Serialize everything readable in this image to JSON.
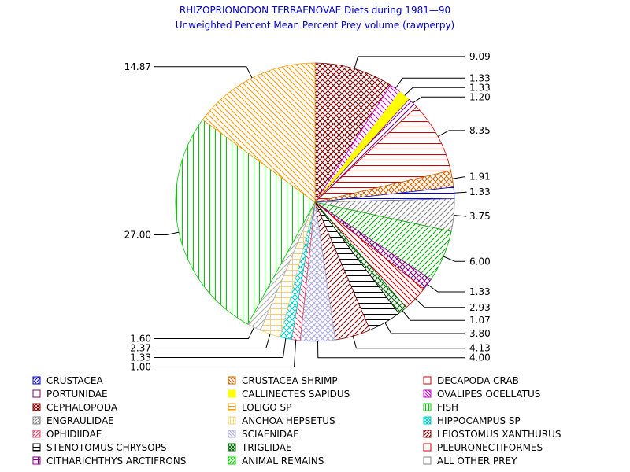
{
  "chart_data": {
    "type": "pie",
    "title": "RHIZOPRIONODON TERRAENOVAE Diets during 1981—90",
    "subtitle": "Unweighted Percent Mean Percent Prey  volume (rawperpy)",
    "slices": [
      {
        "name": "CEPHALOPODA",
        "value": 9.09,
        "label": "9.09",
        "color": "#800000",
        "pattern": "crosshatch"
      },
      {
        "name": "OVALIPES OCELLATUS",
        "value": 1.33,
        "label": "1.33",
        "color": "#cc00cc",
        "pattern": "diag-down"
      },
      {
        "name": "CALLINECTES SAPIDUS",
        "value": 1.33,
        "label": "1.33",
        "color": "#ffff00",
        "pattern": "solid"
      },
      {
        "name": "PORTUNIDAE",
        "value": 1.2,
        "label": "1.20",
        "color": "#800080",
        "pattern": "diag-up"
      },
      {
        "name": "DECAPODA CRAB",
        "value": 8.35,
        "label": "8.35",
        "color": "#cc0000",
        "pattern": "horizontal"
      },
      {
        "name": "CRUSTACEA SHRIMP",
        "value": 1.91,
        "label": "1.91",
        "color": "#cc6600",
        "pattern": "crosshatch"
      },
      {
        "name": "CRUSTACEA",
        "value": 1.33,
        "label": "1.33",
        "color": "#0000cc",
        "pattern": "horizontal"
      },
      {
        "name": "ALL OTHER PREY",
        "value": 3.75,
        "label": "3.75",
        "color": "#808080",
        "pattern": "diag-up"
      },
      {
        "name": "ANIMAL REMAINS",
        "value": 6.0,
        "label": "6.00",
        "color": "#00aa00",
        "pattern": "diag-up"
      },
      {
        "name": "CITHARICHTHYS ARCTIFRONS",
        "value": 1.33,
        "label": "1.33",
        "color": "#800080",
        "pattern": "crosshatch"
      },
      {
        "name": "PLEURONECTIFORMES",
        "value": 2.93,
        "label": "2.93",
        "color": "#cc0000",
        "pattern": "diag-down"
      },
      {
        "name": "TRIGLIDAE",
        "value": 1.07,
        "label": "1.07",
        "color": "#006600",
        "pattern": "crosshatch"
      },
      {
        "name": "STENOTOMUS CHRYSOPS",
        "value": 3.8,
        "label": "3.80",
        "color": "#000000",
        "pattern": "horizontal"
      },
      {
        "name": "LEIOSTOMUS XANTHURUS",
        "value": 4.13,
        "label": "4.13",
        "color": "#800000",
        "pattern": "diag-up"
      },
      {
        "name": "SCIAENIDAE",
        "value": 4.0,
        "label": "4.00",
        "color": "#aaaadd",
        "pattern": "crosshatch"
      },
      {
        "name": "OPHIDIIDAE",
        "value": 1.0,
        "label": "1.00",
        "color": "#dd4466",
        "pattern": "diag-down"
      },
      {
        "name": "HIPPOCAMPUS SP",
        "value": 1.33,
        "label": "1.33",
        "color": "#00cccc",
        "pattern": "crosshatch"
      },
      {
        "name": "ANCHOA HEPSETUS",
        "value": 2.37,
        "label": "2.37",
        "color": "#f0d080",
        "pattern": "grid"
      },
      {
        "name": "ENGRAULIDAE",
        "value": 1.6,
        "label": "1.60",
        "color": "#aaaaaa",
        "pattern": "diag-up"
      },
      {
        "name": "FISH",
        "value": 27.0,
        "label": "27.00",
        "color": "#00cc00",
        "pattern": "vertical"
      },
      {
        "name": "LOLIGO SP",
        "value": 14.87,
        "label": "14.87",
        "color": "#ff9900",
        "pattern": "diag-down"
      }
    ],
    "legend": [
      {
        "name": "CRUSTACEA",
        "color": "#0000cc",
        "pattern": "diag-up"
      },
      {
        "name": "CRUSTACEA SHRIMP",
        "color": "#cc6600",
        "pattern": "diag-down"
      },
      {
        "name": "DECAPODA CRAB",
        "color": "#cc0000",
        "pattern": "box"
      },
      {
        "name": "PORTUNIDAE",
        "color": "#800080",
        "pattern": "box"
      },
      {
        "name": "CALLINECTES SAPIDUS",
        "color": "#ffff00",
        "pattern": "solid"
      },
      {
        "name": "OVALIPES OCELLATUS",
        "color": "#cc00cc",
        "pattern": "diag-down"
      },
      {
        "name": "CEPHALOPODA",
        "color": "#800000",
        "pattern": "crosshatch"
      },
      {
        "name": "LOLIGO SP",
        "color": "#ff9900",
        "pattern": "horizontal"
      },
      {
        "name": "FISH",
        "color": "#00cc00",
        "pattern": "vertical"
      },
      {
        "name": "ENGRAULIDAE",
        "color": "#808080",
        "pattern": "diag-up"
      },
      {
        "name": "ANCHOA HEPSETUS",
        "color": "#f0d080",
        "pattern": "grid"
      },
      {
        "name": "HIPPOCAMPUS SP",
        "color": "#00cccc",
        "pattern": "crosshatch"
      },
      {
        "name": "OPHIDIIDAE",
        "color": "#dd4466",
        "pattern": "diag-up"
      },
      {
        "name": "SCIAENIDAE",
        "color": "#aaaadd",
        "pattern": "diag-down"
      },
      {
        "name": "LEIOSTOMUS XANTHURUS",
        "color": "#800000",
        "pattern": "diag-up"
      },
      {
        "name": "STENOTOMUS CHRYSOPS",
        "color": "#000000",
        "pattern": "horizontal"
      },
      {
        "name": "TRIGLIDAE",
        "color": "#006600",
        "pattern": "crosshatch"
      },
      {
        "name": "PLEURONECTIFORMES",
        "color": "#cc0000",
        "pattern": "box"
      },
      {
        "name": "CITHARICHTHYS ARCTIFRONS",
        "color": "#800080",
        "pattern": "grid"
      },
      {
        "name": "ANIMAL REMAINS",
        "color": "#00cc00",
        "pattern": "diag-up"
      },
      {
        "name": "ALL OTHER PREY",
        "color": "#808080",
        "pattern": "box"
      }
    ]
  }
}
